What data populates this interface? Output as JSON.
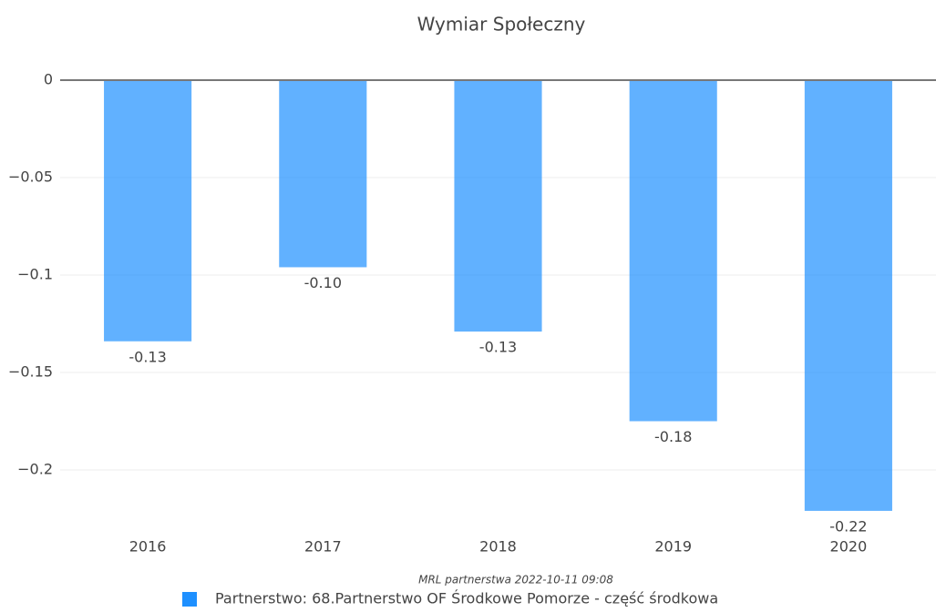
{
  "chart_data": {
    "type": "bar",
    "title": "Wymiar Społeczny",
    "categories": [
      "2016",
      "2017",
      "2018",
      "2019",
      "2020"
    ],
    "series": [
      {
        "name": "Partnerstwo: 68.Partnerstwo OF Środkowe Pomorze - część środkowa",
        "color": "#1e90ff",
        "values": [
          -0.134,
          -0.096,
          -0.129,
          -0.175,
          -0.221
        ],
        "value_labels": [
          "-0.13",
          "-0.10",
          "-0.13",
          "-0.18",
          "-0.22"
        ]
      }
    ],
    "ylim": [
      -0.225,
      0
    ],
    "yticks": [
      0,
      {
        "value": -0.05,
        "label": "−0.05"
      },
      {
        "value": -0.1,
        "label": "−0.1"
      },
      {
        "value": -0.15,
        "label": "−0.15"
      },
      {
        "value": -0.2,
        "label": "−0.2"
      }
    ],
    "grid": true,
    "annotation": "MRL partnerstwa 2022-10-11 09:08"
  }
}
